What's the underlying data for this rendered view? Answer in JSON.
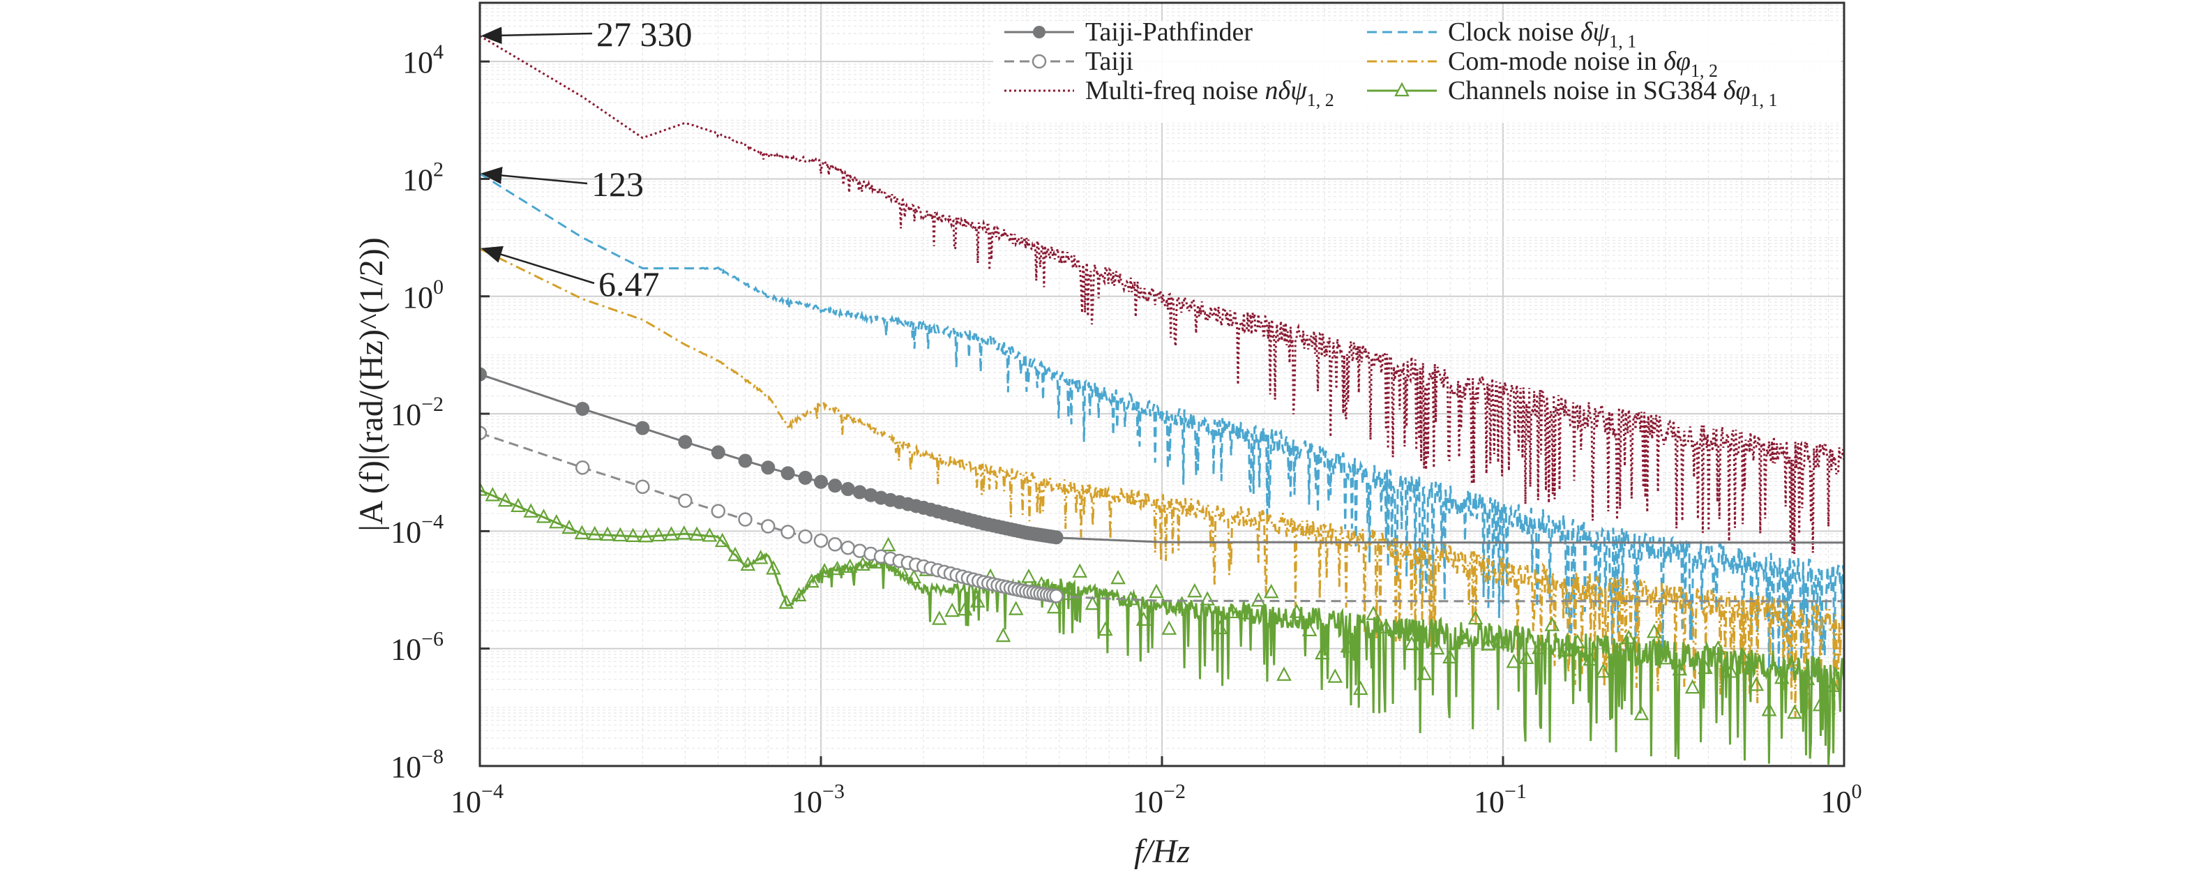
{
  "chart_data": {
    "type": "line",
    "xscale": "log",
    "yscale": "log",
    "xlim": [
      0.0001,
      1
    ],
    "ylim": [
      1e-08,
      100000
    ],
    "grid": true,
    "legend_position": "top-right",
    "xlabel": "f/Hz",
    "ylabel": "|A (f)|(rad/(Hz)^(1/2))",
    "xticks": [
      {
        "base": "10",
        "exp": "−4"
      },
      {
        "base": "10",
        "exp": "−3"
      },
      {
        "base": "10",
        "exp": "−2"
      },
      {
        "base": "10",
        "exp": "−1"
      },
      {
        "base": "10",
        "exp": "0"
      }
    ],
    "yticks": [
      {
        "base": "10",
        "exp": "−8"
      },
      {
        "base": "10",
        "exp": "−6"
      },
      {
        "base": "10",
        "exp": "−4"
      },
      {
        "base": "10",
        "exp": "−2"
      },
      {
        "base": "10",
        "exp": "0"
      },
      {
        "base": "10",
        "exp": "2"
      },
      {
        "base": "10",
        "exp": "4"
      }
    ],
    "annotations": [
      {
        "text": "27 330",
        "x": 0.0001,
        "y": 27330
      },
      {
        "text": "123",
        "x": 0.0001,
        "y": 123
      },
      {
        "text": "6.47",
        "x": 0.0001,
        "y": 6.47
      }
    ],
    "series": [
      {
        "name": "Multi-freq noise nδψ1, 2",
        "legend": [
          "Multi-freq noise ",
          "nδψ",
          "1, 2"
        ],
        "color": "#8b1a32",
        "style": "dotted",
        "marker": "none",
        "noisy": true,
        "x": [
          0.0001,
          0.0002,
          0.0003,
          0.0004,
          0.0005,
          0.0007,
          0.001,
          0.002,
          0.003,
          0.005,
          0.01,
          0.02,
          0.05,
          0.1,
          0.2,
          0.5,
          1
        ],
        "y": [
          27330,
          2500,
          500,
          900,
          600,
          250,
          200,
          25,
          15,
          5,
          0.9,
          0.3,
          0.06,
          0.02,
          0.008,
          0.003,
          0.0015
        ]
      },
      {
        "name": "Clock noise δψ1, 1",
        "legend": [
          "Clock noise ",
          "δψ",
          "1, 1"
        ],
        "color": "#4aa6cf",
        "style": "dashed",
        "marker": "none",
        "noisy": true,
        "x": [
          0.0001,
          0.0002,
          0.0003,
          0.0004,
          0.0005,
          0.0007,
          0.001,
          0.002,
          0.003,
          0.005,
          0.01,
          0.02,
          0.05,
          0.1,
          0.2,
          0.5,
          1
        ],
        "y": [
          123,
          10,
          3,
          3,
          3,
          1,
          0.6,
          0.3,
          0.2,
          0.04,
          0.01,
          0.004,
          0.0006,
          0.0002,
          7e-05,
          3e-05,
          1.5e-05
        ]
      },
      {
        "name": "Com-mode noise in δφ1, 2",
        "legend": [
          "Com-mode noise in ",
          "δφ",
          "1, 2"
        ],
        "color": "#d4a02a",
        "style": "dashdot",
        "marker": "none",
        "noisy": true,
        "x": [
          0.0001,
          0.0002,
          0.0003,
          0.0004,
          0.0005,
          0.0007,
          0.0008,
          0.001,
          0.002,
          0.003,
          0.005,
          0.01,
          0.02,
          0.05,
          0.1,
          0.2,
          0.5,
          1
        ],
        "y": [
          6.47,
          0.9,
          0.4,
          0.15,
          0.08,
          0.02,
          0.006,
          0.015,
          0.002,
          0.0012,
          0.0006,
          0.0003,
          0.00015,
          5e-05,
          2e-05,
          1e-05,
          5e-06,
          3e-06
        ]
      },
      {
        "name": "Taiji-Pathfinder",
        "legend": [
          "Taiji-Pathfinder"
        ],
        "color": "#767779",
        "style": "solid",
        "marker": "filled-circle",
        "x": [
          0.0001,
          0.0002,
          0.0003,
          0.0004,
          0.0005,
          0.0006,
          0.0007,
          0.0008,
          0.0009,
          0.001,
          0.0015,
          0.002,
          0.003,
          0.004,
          0.005,
          0.01,
          0.1,
          1
        ],
        "y": [
          0.047,
          0.0121,
          0.0057,
          0.0033,
          0.0022,
          0.00158,
          0.00121,
          0.00097,
          0.00081,
          0.00069,
          0.00037,
          0.00025,
          0.000135,
          9.4e-05,
          7.7e-05,
          6.5e-05,
          6.4e-05,
          6.4e-05
        ]
      },
      {
        "name": "Taiji",
        "legend": [
          "Taiji"
        ],
        "color": "#8a8b8d",
        "style": "dashed",
        "marker": "open-circle",
        "x": [
          0.0001,
          0.0002,
          0.0003,
          0.0004,
          0.0005,
          0.0006,
          0.0007,
          0.0008,
          0.0009,
          0.001,
          0.0015,
          0.002,
          0.003,
          0.004,
          0.005,
          0.01,
          0.1,
          1
        ],
        "y": [
          0.0047,
          0.00121,
          0.00057,
          0.00033,
          0.00022,
          0.000158,
          0.000121,
          9.7e-05,
          8.1e-05,
          6.9e-05,
          3.7e-05,
          2.5e-05,
          1.35e-05,
          9.4e-06,
          7.7e-06,
          6.5e-06,
          6.4e-06,
          6.4e-06
        ]
      },
      {
        "name": "Channels noise in SG384 δφ1, 1",
        "legend": [
          "Channels noise in SG384 ",
          "δφ",
          "1, 1"
        ],
        "color": "#66a336",
        "style": "solid",
        "marker": "open-triangle",
        "noisy": true,
        "x": [
          0.0001,
          0.0002,
          0.0003,
          0.0004,
          0.0005,
          0.0006,
          0.0007,
          0.0008,
          0.001,
          0.0015,
          0.002,
          0.005,
          0.01,
          0.02,
          0.05,
          0.1,
          0.2,
          0.5,
          1
        ],
        "y": [
          0.0005,
          9e-05,
          8e-05,
          9e-05,
          8e-05,
          2.5e-05,
          4e-05,
          5e-06,
          2e-05,
          3e-05,
          1e-05,
          1.2e-05,
          5e-06,
          4e-06,
          2e-06,
          1.5e-06,
          1e-06,
          6e-07,
          4e-07
        ]
      }
    ]
  }
}
